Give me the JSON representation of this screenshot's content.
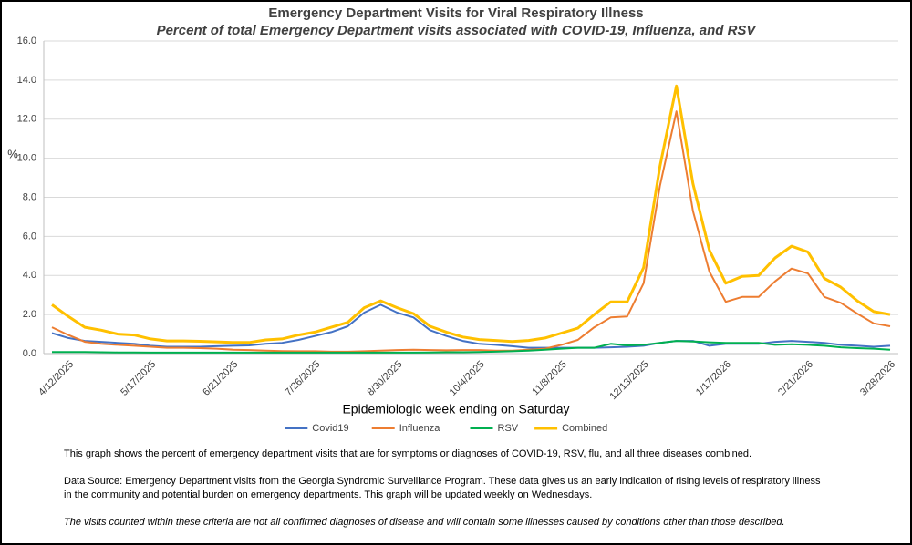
{
  "chart_data": {
    "type": "line",
    "title": "Emergency Department Visits for Viral Respiratory Illness",
    "subtitle": "Percent of total Emergency Department visits associated with COVID-19, Influenza, and RSV",
    "y_label": "%",
    "x_label": "Epidemiologic  week ending on Saturday",
    "categories": [
      null,
      "4/12/2025",
      null,
      null,
      null,
      null,
      "5/17/2025",
      null,
      null,
      null,
      null,
      "6/21/2025",
      null,
      null,
      null,
      null,
      "7/26/2025",
      null,
      null,
      null,
      null,
      "8/30/2025",
      null,
      null,
      null,
      null,
      "10/4/2025",
      null,
      null,
      null,
      null,
      "11/8/2025",
      null,
      null,
      null,
      null,
      "12/13/2025",
      null,
      null,
      null,
      null,
      "1/17/2026",
      null,
      null,
      null,
      null,
      "2/21/2026",
      null,
      null,
      null,
      null,
      "3/28/2026"
    ],
    "ylim": [
      0,
      16
    ],
    "yticks": [
      {
        "value": 0,
        "label": "0.0"
      },
      {
        "value": 2,
        "label": "2.0"
      },
      {
        "value": 4,
        "label": "4.0"
      },
      {
        "value": 6,
        "label": "6.0"
      },
      {
        "value": 8,
        "label": "8.0"
      },
      {
        "value": 10,
        "label": "10.0"
      },
      {
        "value": 12,
        "label": "12.0"
      },
      {
        "value": 14,
        "label": "14.0"
      },
      {
        "value": 16,
        "label": "16.0"
      }
    ],
    "grid": true,
    "legend": "bottom",
    "series": [
      {
        "name": "Covid19",
        "color": "#4472c4",
        "values": [
          1.05,
          0.8,
          0.65,
          0.6,
          0.55,
          0.5,
          0.4,
          0.35,
          0.35,
          0.35,
          0.38,
          0.4,
          0.42,
          0.5,
          0.55,
          0.7,
          0.9,
          1.1,
          1.4,
          2.1,
          2.5,
          2.1,
          1.85,
          1.2,
          0.9,
          0.65,
          0.5,
          0.45,
          0.38,
          0.3,
          0.3,
          0.3,
          0.3,
          0.3,
          0.32,
          0.35,
          0.4,
          0.55,
          0.65,
          0.65,
          0.4,
          0.5,
          0.5,
          0.5,
          0.6,
          0.65,
          0.6,
          0.55,
          0.45,
          0.4,
          0.35,
          0.4
        ]
      },
      {
        "name": "Influenza",
        "color": "#ed7d31",
        "values": [
          1.35,
          0.95,
          0.6,
          0.5,
          0.45,
          0.4,
          0.35,
          0.3,
          0.3,
          0.28,
          0.25,
          0.2,
          0.18,
          0.15,
          0.13,
          0.12,
          0.12,
          0.1,
          0.1,
          0.12,
          0.15,
          0.18,
          0.2,
          0.18,
          0.17,
          0.18,
          0.18,
          0.15,
          0.15,
          0.2,
          0.25,
          0.45,
          0.7,
          1.35,
          1.85,
          1.9,
          3.6,
          8.6,
          12.4,
          7.3,
          4.2,
          2.65,
          2.9,
          2.9,
          3.7,
          4.35,
          4.1,
          2.9,
          2.6,
          2.05,
          1.55,
          1.4
        ]
      },
      {
        "name": "RSV",
        "color": "#00b050",
        "values": [
          0.08,
          0.08,
          0.08,
          0.07,
          0.06,
          0.06,
          0.05,
          0.05,
          0.05,
          0.05,
          0.05,
          0.05,
          0.05,
          0.05,
          0.05,
          0.05,
          0.05,
          0.05,
          0.05,
          0.05,
          0.05,
          0.05,
          0.05,
          0.06,
          0.07,
          0.07,
          0.08,
          0.1,
          0.12,
          0.15,
          0.2,
          0.25,
          0.3,
          0.3,
          0.5,
          0.42,
          0.45,
          0.55,
          0.65,
          0.62,
          0.58,
          0.55,
          0.55,
          0.55,
          0.45,
          0.48,
          0.45,
          0.4,
          0.32,
          0.28,
          0.25,
          0.2
        ]
      },
      {
        "name": "Combined",
        "color": "#ffc000",
        "values": [
          2.5,
          1.9,
          1.35,
          1.2,
          1.0,
          0.95,
          0.75,
          0.65,
          0.65,
          0.63,
          0.6,
          0.57,
          0.57,
          0.7,
          0.75,
          0.95,
          1.1,
          1.35,
          1.6,
          2.35,
          2.7,
          2.35,
          2.05,
          1.4,
          1.1,
          0.85,
          0.72,
          0.67,
          0.62,
          0.67,
          0.8,
          1.05,
          1.3,
          2.0,
          2.65,
          2.65,
          4.4,
          9.6,
          13.7,
          8.7,
          5.3,
          3.6,
          3.95,
          4.0,
          4.9,
          5.5,
          5.2,
          3.85,
          3.4,
          2.7,
          2.15,
          2.0
        ]
      }
    ],
    "notes": [
      "This graph shows the percent of emergency department visits that are for symptoms or diagnoses of COVID-19, RSV, flu, and all three diseases combined.",
      "Data Source: Emergency Department visits from the Georgia Syndromic Surveillance Program. These data gives us an early indication of rising levels of respiratory illness",
      "in the community and potential burden on emergency departments. This graph will be updated weekly on Wednesdays.",
      "The visits counted within these criteria are not all confirmed diagnoses of disease and will contain some illnesses caused by conditions other than those described."
    ]
  }
}
